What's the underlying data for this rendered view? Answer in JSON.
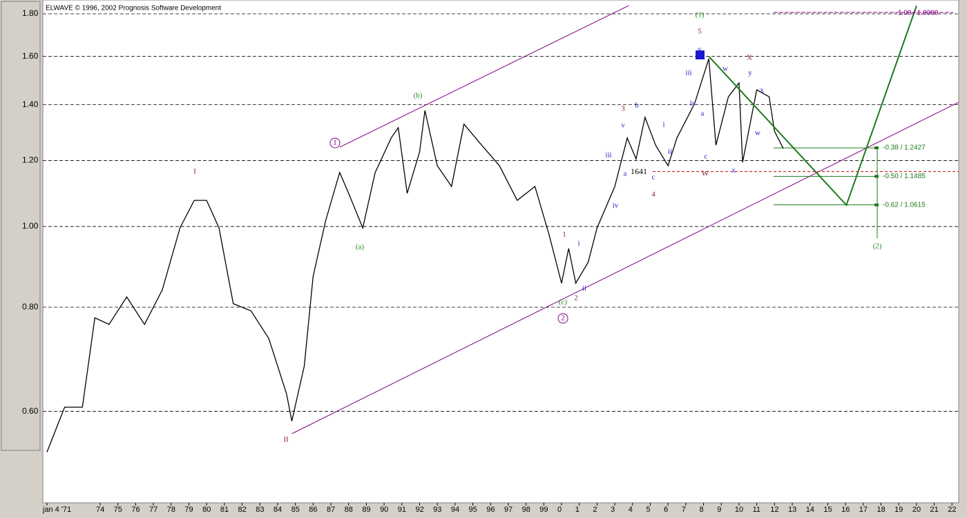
{
  "chart_data": {
    "type": "line",
    "title": "ELWAVE © 1996, 2002 Prognosis Software Development",
    "log_scale": true,
    "grid": true,
    "ylim": [
      0.466,
      1.87
    ],
    "yticks": [
      {
        "value": 0.6,
        "label": "0.60"
      },
      {
        "value": 0.8,
        "label": "0.80"
      },
      {
        "value": 1.0,
        "label": "1.00"
      },
      {
        "value": 1.2,
        "label": "1.20"
      },
      {
        "value": 1.4,
        "label": "1.40"
      },
      {
        "value": 1.6,
        "label": "1.60"
      },
      {
        "value": 1.8,
        "label": "1.80"
      }
    ],
    "xlim": [
      1970.77,
      2022.38
    ],
    "xticks": [
      {
        "value": 1971,
        "label": "jan 4 '71"
      },
      {
        "value": 1974,
        "label": "74"
      },
      {
        "value": 1975,
        "label": "75"
      },
      {
        "value": 1976,
        "label": "76"
      },
      {
        "value": 1977,
        "label": "77"
      },
      {
        "value": 1978,
        "label": "78"
      },
      {
        "value": 1979,
        "label": "79"
      },
      {
        "value": 1980,
        "label": "80"
      },
      {
        "value": 1981,
        "label": "81"
      },
      {
        "value": 1982,
        "label": "82"
      },
      {
        "value": 1983,
        "label": "83"
      },
      {
        "value": 1984,
        "label": "84"
      },
      {
        "value": 1985,
        "label": "85"
      },
      {
        "value": 1986,
        "label": "86"
      },
      {
        "value": 1987,
        "label": "87"
      },
      {
        "value": 1988,
        "label": "88"
      },
      {
        "value": 1989,
        "label": "89"
      },
      {
        "value": 1990,
        "label": "90"
      },
      {
        "value": 1991,
        "label": "91"
      },
      {
        "value": 1992,
        "label": "92"
      },
      {
        "value": 1993,
        "label": "93"
      },
      {
        "value": 1994,
        "label": "94"
      },
      {
        "value": 1995,
        "label": "95"
      },
      {
        "value": 1996,
        "label": "96"
      },
      {
        "value": 1997,
        "label": "97"
      },
      {
        "value": 1998,
        "label": "98"
      },
      {
        "value": 1999,
        "label": "99"
      },
      {
        "value": 2000,
        "label": "0"
      },
      {
        "value": 2001,
        "label": "1"
      },
      {
        "value": 2002,
        "label": "2"
      },
      {
        "value": 2003,
        "label": "3"
      },
      {
        "value": 2004,
        "label": "4"
      },
      {
        "value": 2005,
        "label": "5"
      },
      {
        "value": 2006,
        "label": "6"
      },
      {
        "value": 2007,
        "label": "7"
      },
      {
        "value": 2008,
        "label": "8"
      },
      {
        "value": 2009,
        "label": "9"
      },
      {
        "value": 2010,
        "label": "10"
      },
      {
        "value": 2011,
        "label": "11"
      },
      {
        "value": 2012,
        "label": "12"
      },
      {
        "value": 2013,
        "label": "13"
      },
      {
        "value": 2014,
        "label": "14"
      },
      {
        "value": 2015,
        "label": "15"
      },
      {
        "value": 2016,
        "label": "16"
      },
      {
        "value": 2017,
        "label": "17"
      },
      {
        "value": 2018,
        "label": "18"
      },
      {
        "value": 2019,
        "label": "19"
      },
      {
        "value": 2020,
        "label": "20"
      },
      {
        "value": 2021,
        "label": "21"
      },
      {
        "value": 2022,
        "label": "22"
      }
    ],
    "lines": [
      {
        "color": "#000000",
        "x": [
          1971.0,
          1972.0,
          1973.0,
          1973.7,
          1974.5,
          1975.5,
          1976.5,
          1977.5,
          1978.5,
          1979.3,
          1980.0,
          1980.7,
          1981.5,
          1982.5,
          1983.5,
          1984.5,
          1984.8,
          1985.5,
          1986.0,
          1986.7,
          1987.5,
          1988.0,
          1988.8,
          1989.5,
          1990.4,
          1990.8,
          1991.3,
          1992.0,
          1992.3,
          1993.0,
          1993.8,
          1994.5,
          1995.5,
          1996.5,
          1997.5,
          1998.5,
          1999.3,
          2000.0,
          2000.4,
          2000.8,
          2001.5,
          2002.0,
          2003.0,
          2003.7,
          2004.2,
          2004.7,
          2005.3,
          2006.0,
          2006.5,
          2007.5,
          2008.3,
          2008.7,
          2009.4,
          2010.0,
          2010.2,
          2011.0,
          2011.7,
          2012.0,
          2012.5
        ],
        "values": [
          0.536,
          0.607,
          0.607,
          0.777,
          0.763,
          0.823,
          0.763,
          0.839,
          0.996,
          1.075,
          1.075,
          0.996,
          0.808,
          0.792,
          0.734,
          0.63,
          0.584,
          0.68,
          0.871,
          1.015,
          1.161,
          1.096,
          0.996,
          1.161,
          1.277,
          1.314,
          1.096,
          1.229,
          1.378,
          1.183,
          1.117,
          1.327,
          1.252,
          1.183,
          1.075,
          1.117,
          0.977,
          0.855,
          0.941,
          0.855,
          0.906,
          0.996,
          1.117,
          1.277,
          1.205,
          1.352,
          1.252,
          1.183,
          1.277,
          1.405,
          1.59,
          1.252,
          1.431,
          1.487,
          1.194,
          1.459,
          1.431,
          1.301,
          1.24
        ]
      },
      {
        "color": "#800080",
        "x": [
          1987.5,
          2003.8
        ],
        "values": [
          1.245,
          1.842
        ]
      },
      {
        "color": "#800080",
        "x": [
          1984.8,
          2022.38
        ],
        "values": [
          0.564,
          1.41
        ]
      },
      {
        "color": "#1a7a1a",
        "x": [
          2008.3,
          2016.05,
          2020.0
        ],
        "values": [
          1.6,
          1.061,
          1.84
        ]
      }
    ],
    "support_level": 1.1641,
    "fib_levels": [
      1.2427,
      1.1485,
      1.0615
    ],
    "fib_labels": [
      "-0.38 / 1.2427",
      "-0.50 / 1.1485",
      "-0.62 / 1.0615"
    ],
    "top_label": "1.00 / 1.8080",
    "annotations": [
      "I",
      "II",
      "1",
      "2",
      "(a)",
      "(b)",
      "(c)",
      "(1)",
      "(2)",
      "1",
      "2",
      "3",
      "4",
      "5",
      "i",
      "ii",
      "iii",
      "iv",
      "v",
      "a",
      "b",
      "c",
      "i",
      "ii",
      "iii",
      "iv",
      "v",
      "a",
      "c",
      "w",
      "x",
      "y",
      "x",
      "w",
      "W",
      "X",
      "1641"
    ]
  }
}
